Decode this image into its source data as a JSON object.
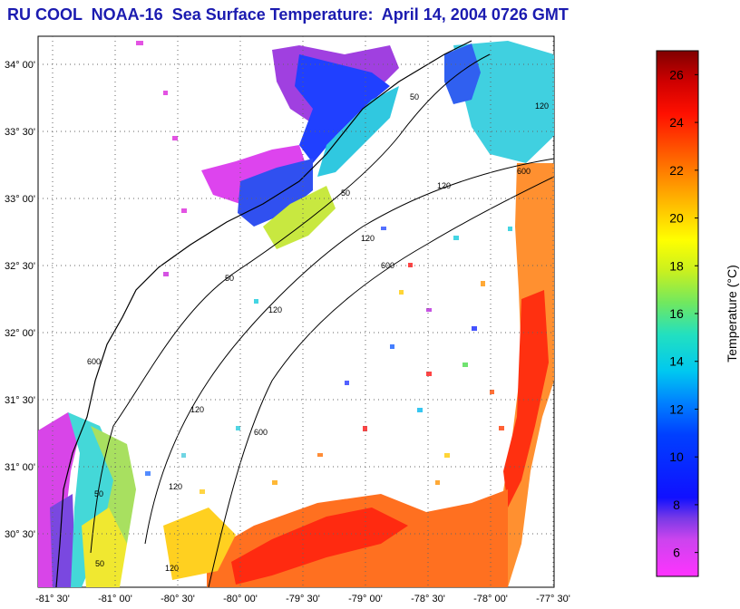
{
  "title": "RU COOL  NOAA-16  Sea Surface Temperature:  April 14, 2004 0726 GMT",
  "map": {
    "lat_labels": [
      {
        "lat": 34.0,
        "label": "34° 00'"
      },
      {
        "lat": 33.5,
        "label": "33° 30'"
      },
      {
        "lat": 33.0,
        "label": "33° 00'"
      },
      {
        "lat": 32.5,
        "label": "32° 30'"
      },
      {
        "lat": 32.0,
        "label": "32° 00'"
      },
      {
        "lat": 31.5,
        "label": "31° 30'"
      },
      {
        "lat": 31.0,
        "label": "31° 00'"
      },
      {
        "lat": 30.5,
        "label": "30° 30'"
      }
    ],
    "lon_labels": [
      {
        "lon": -81.5,
        "label": "-81° 30'"
      },
      {
        "lon": -81.0,
        "label": "-81° 00'"
      },
      {
        "lon": -80.5,
        "label": "-80° 30'"
      },
      {
        "lon": -80.0,
        "label": "-80° 00'"
      },
      {
        "lon": -79.5,
        "label": "-79° 30'"
      },
      {
        "lon": -79.0,
        "label": "-79° 00'"
      },
      {
        "lon": -78.5,
        "label": "-78° 30'"
      },
      {
        "lon": -78.0,
        "label": "-78° 00'"
      },
      {
        "lon": -77.5,
        "label": "-77° 30'"
      }
    ],
    "contour_labels": [
      "50",
      "50",
      "50",
      "50",
      "50",
      "120",
      "120",
      "120",
      "120",
      "120",
      "120",
      "600",
      "600",
      "600",
      "600",
      "120"
    ]
  },
  "colorbar": {
    "label": "Temperature (°C)",
    "min": 5,
    "max": 27,
    "ticks": [
      "6",
      "8",
      "10",
      "12",
      "14",
      "16",
      "18",
      "20",
      "22",
      "24",
      "26"
    ]
  }
}
